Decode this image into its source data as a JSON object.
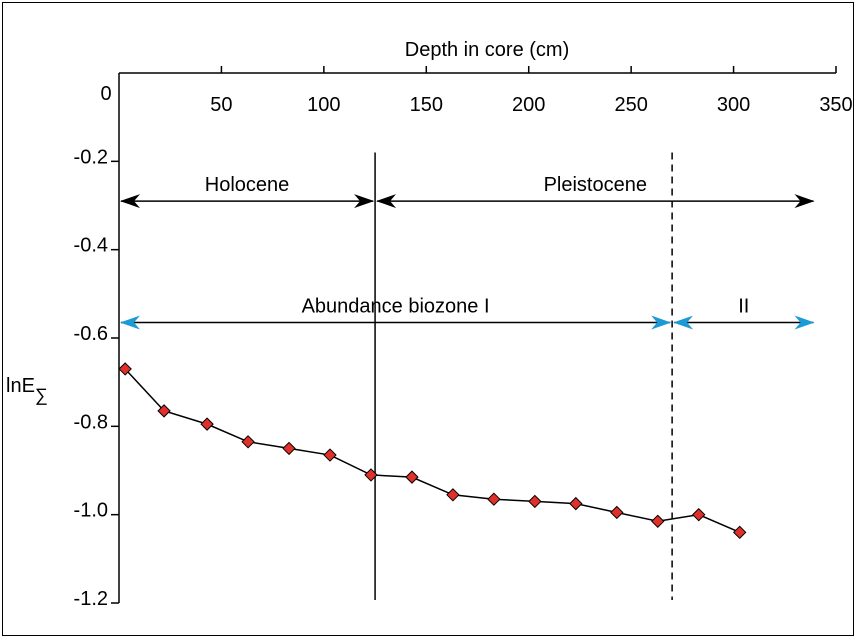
{
  "chart_data": {
    "type": "line",
    "xlabel": "Depth in core (cm)",
    "ylabel": "lnE",
    "ylabel_sub": "∑",
    "xlim": [
      0,
      350
    ],
    "ylim": [
      -1.2,
      0
    ],
    "xticks": [
      {
        "value": 0,
        "label": "0"
      },
      {
        "value": 50,
        "label": "50"
      },
      {
        "value": 100,
        "label": "100"
      },
      {
        "value": 150,
        "label": "150"
      },
      {
        "value": 200,
        "label": "200"
      },
      {
        "value": 250,
        "label": "250"
      },
      {
        "value": 300,
        "label": "300"
      },
      {
        "value": 350,
        "label": "350"
      }
    ],
    "yticks": [
      {
        "value": -0.2,
        "label": "-0.2"
      },
      {
        "value": -0.4,
        "label": "-0.4"
      },
      {
        "value": -0.6,
        "label": "-0.6"
      },
      {
        "value": -0.8,
        "label": "-0.8"
      },
      {
        "value": -1.0,
        "label": "-1.0"
      },
      {
        "value": -1.2,
        "label": "-1.2"
      }
    ],
    "series": [
      {
        "x": [
          3,
          22,
          43,
          63,
          83,
          103,
          123,
          143,
          163,
          183,
          203,
          223,
          243,
          263,
          283,
          303
        ],
        "y": [
          -0.67,
          -0.765,
          -0.795,
          -0.835,
          -0.85,
          -0.865,
          -0.91,
          -0.915,
          -0.955,
          -0.965,
          -0.97,
          -0.975,
          -0.995,
          -1.015,
          -1.0,
          -1.04
        ],
        "color": "#000000",
        "marker_color": "#e0302a"
      }
    ],
    "vlines": [
      {
        "x": 125,
        "style": "solid"
      },
      {
        "x": 270,
        "style": "dashed"
      }
    ],
    "annotations": [
      {
        "label": "Holocene",
        "x_from": 0,
        "x_to": 125,
        "y": -0.29,
        "color": "#000000"
      },
      {
        "label": "Pleistocene",
        "x_from": 125,
        "x_to": 340,
        "y": -0.29,
        "color": "#000000"
      },
      {
        "label": "Abundance biozone I",
        "x_from": 0,
        "x_to": 270,
        "y": -0.565,
        "color": "#1c9ad6"
      },
      {
        "label": "II",
        "x_from": 270,
        "x_to": 340,
        "y": -0.565,
        "color": "#1c9ad6"
      }
    ]
  }
}
